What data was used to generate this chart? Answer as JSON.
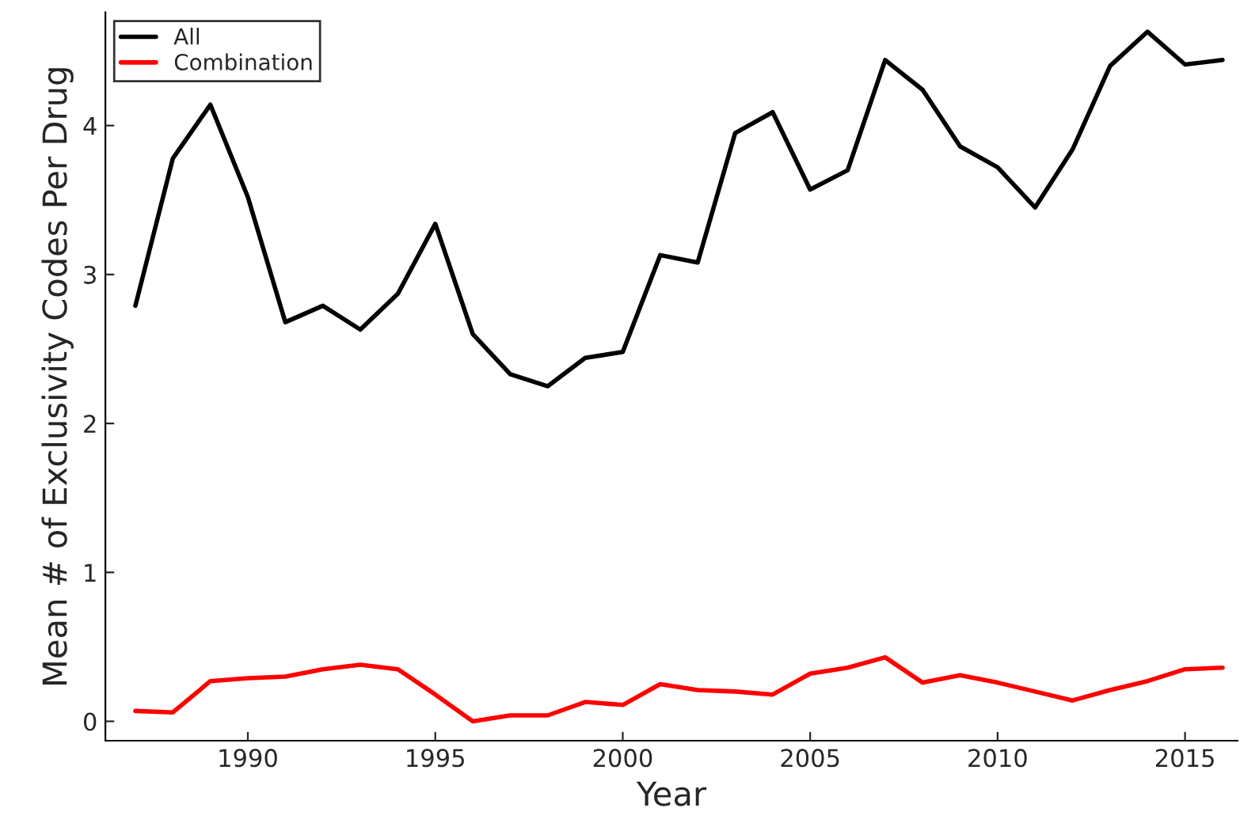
{
  "chart_data": {
    "type": "line",
    "xlabel": "Year",
    "ylabel": "Mean # of Exclusivity Codes Per Drug",
    "x": [
      1987,
      1988,
      1989,
      1990,
      1991,
      1992,
      1993,
      1994,
      1995,
      1996,
      1997,
      1998,
      1999,
      2000,
      2001,
      2002,
      2003,
      2004,
      2005,
      2006,
      2007,
      2008,
      2009,
      2010,
      2011,
      2012,
      2013,
      2014,
      2015,
      2016
    ],
    "series": [
      {
        "name": "All",
        "color": "#000000",
        "values": [
          2.79,
          3.78,
          4.14,
          3.52,
          2.68,
          2.79,
          2.63,
          2.87,
          3.34,
          2.6,
          2.33,
          2.25,
          2.44,
          2.48,
          3.13,
          3.08,
          3.95,
          4.09,
          3.57,
          3.7,
          4.44,
          4.24,
          3.86,
          3.72,
          3.45,
          3.84,
          4.4,
          4.63,
          4.41,
          4.44
        ]
      },
      {
        "name": "Combination",
        "color": "#ff0000",
        "values": [
          0.07,
          0.06,
          0.27,
          0.29,
          0.3,
          0.35,
          0.38,
          0.35,
          0.18,
          0.0,
          0.04,
          0.04,
          0.13,
          0.11,
          0.25,
          0.21,
          0.2,
          0.18,
          0.32,
          0.36,
          0.43,
          0.26,
          0.31,
          0.26,
          0.2,
          0.14,
          0.21,
          0.27,
          0.35,
          0.36
        ]
      }
    ],
    "xlim": [
      1986.2,
      2016.4
    ],
    "xticks": [
      1990,
      1995,
      2000,
      2005,
      2010,
      2015
    ],
    "ylim": [
      -0.13,
      4.76
    ],
    "yticks": [
      0,
      1,
      2,
      3,
      4
    ],
    "grid": false,
    "legend": "top left",
    "line_style": "solid",
    "marker": "none"
  }
}
